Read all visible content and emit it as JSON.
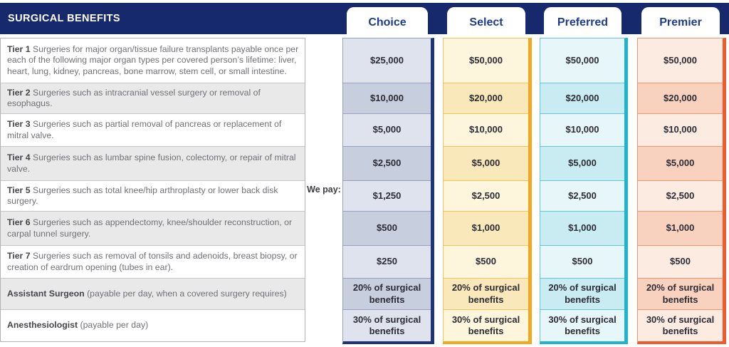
{
  "header": {
    "title": "SURGICAL BENEFITS"
  },
  "we_pay_label": "We pay:",
  "colors": {
    "bar_navy": "#17296d",
    "tab_text": "#1d3d8c",
    "desc_outer_border": "#b2b3b5",
    "desc_inner_border": "#c6c7c9",
    "desc_stripe": "#e9e9ea",
    "desc_text": "#707175",
    "desc_label_text": "#454649",
    "value_text": "#2c2c35"
  },
  "plans": [
    {
      "name": "Choice",
      "accent": "#1d3576",
      "separator": "#97a2c1",
      "light": "#dfe3ee",
      "dark": "#c7cede"
    },
    {
      "name": "Select",
      "accent": "#f2a71f",
      "separator": "#f4c35c",
      "light": "#fdf5dc",
      "dark": "#f8e8ba"
    },
    {
      "name": "Preferred",
      "accent": "#1eb4cf",
      "separator": "#62c6d8",
      "light": "#e7f6f9",
      "dark": "#c9ebf2"
    },
    {
      "name": "Premier",
      "accent": "#f15a29",
      "separator": "#f4946b",
      "light": "#fcebe1",
      "dark": "#f9d2bf"
    }
  ],
  "rows": [
    {
      "label": "Tier 1",
      "description": "Surgeries for major organ/tissue failure transplants payable once per each of the following major organ types per covered person’s lifetime: liver, heart, lung, kidney, pancreas, bone marrow, stem cell, or small intestine.",
      "values": [
        "$25,000",
        "$50,000",
        "$50,000",
        "$50,000"
      ]
    },
    {
      "label": "Tier 2",
      "description": "Surgeries such as intracranial vessel surgery or removal of esophagus.",
      "values": [
        "$10,000",
        "$20,000",
        "$20,000",
        "$20,000"
      ]
    },
    {
      "label": "Tier 3",
      "description": "Surgeries such as partial removal of pancreas or replacement of mitral valve.",
      "values": [
        "$5,000",
        "$10,000",
        "$10,000",
        "$10,000"
      ]
    },
    {
      "label": "Tier 4",
      "description": "Surgeries such as lumbar spine fusion, colectomy, or repair of mitral valve.",
      "values": [
        "$2,500",
        "$5,000",
        "$5,000",
        "$5,000"
      ]
    },
    {
      "label": "Tier 5",
      "description": "Surgeries such as total knee/hip arthroplasty or lower back disk surgery.",
      "values": [
        "$1,250",
        "$2,500",
        "$2,500",
        "$2,500"
      ]
    },
    {
      "label": "Tier 6",
      "description": "Surgeries such as appendectomy, knee/shoulder reconstruction, or carpal tunnel surgery.",
      "values": [
        "$500",
        "$1,000",
        "$1,000",
        "$1,000"
      ]
    },
    {
      "label": "Tier 7",
      "description": "Surgeries such as removal of tonsils and adenoids, breast biopsy, or creation of eardrum opening (tubes in ear).",
      "values": [
        "$250",
        "$500",
        "$500",
        "$500"
      ]
    },
    {
      "label": "Assistant Surgeon",
      "description": "(payable per day, when a covered surgery requires)",
      "values": [
        "20% of surgical benefits",
        "20% of surgical benefits",
        "20% of surgical benefits",
        "20% of surgical benefits"
      ]
    },
    {
      "label": "Anesthesiologist",
      "description": "(payable per day)",
      "values": [
        "30% of surgical benefits",
        "30% of surgical benefits",
        "30% of surgical benefits",
        "30% of surgical benefits"
      ]
    }
  ]
}
